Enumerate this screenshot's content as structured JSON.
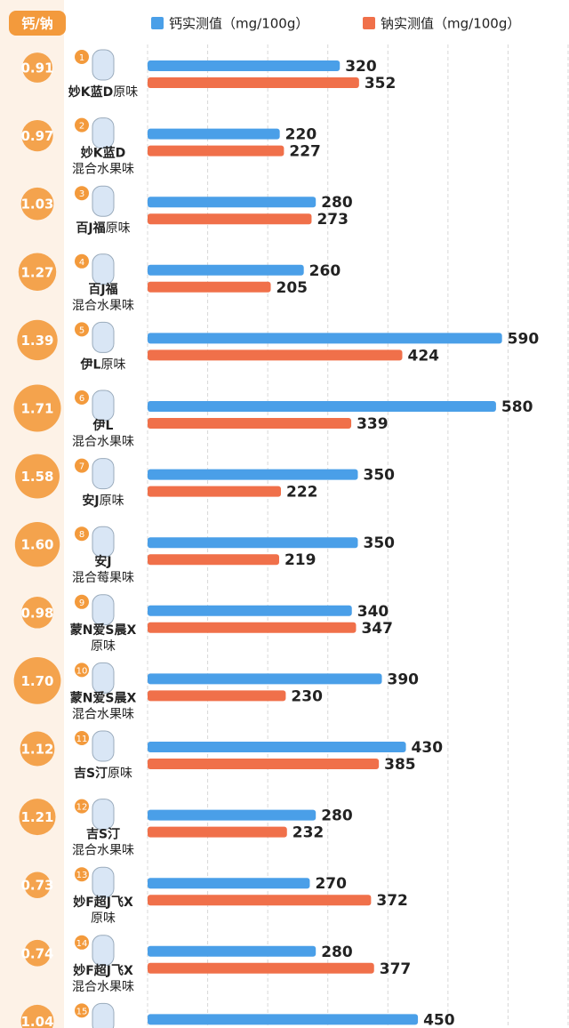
{
  "chart_data": {
    "type": "bar",
    "ratio_header": "钙/钠",
    "ranks": [
      1,
      2,
      3,
      4,
      5,
      6,
      7,
      8,
      9,
      10,
      11,
      12,
      13,
      14,
      15
    ],
    "categories": [
      "妙K蓝D",
      "妙K蓝D",
      "百J福",
      "百J福",
      "伊L",
      "伊L",
      "安J",
      "安J",
      "蒙N爱S晨X",
      "蒙N爱S晨X",
      "吉S汀",
      "吉S汀",
      "妙F超J飞X",
      "妙F超J飞X",
      null
    ],
    "flavors": [
      "原味",
      "混合水果味",
      "原味",
      "混合水果味",
      "原味",
      "混合水果味",
      "原味",
      "混合莓果味",
      "原味",
      "混合水果味",
      "原味",
      "混合水果味",
      "原味",
      "混合水果味",
      null
    ],
    "ratios": [
      0.91,
      0.97,
      1.03,
      1.27,
      1.39,
      1.71,
      1.58,
      1.6,
      0.98,
      1.7,
      1.12,
      1.21,
      0.73,
      0.74,
      1.04
    ],
    "ratio_labels": [
      "0.91",
      "0.97",
      "1.03",
      "1.27",
      "1.39",
      "1.71",
      "1.58",
      "1.60",
      "0.98",
      "1.70",
      "1.12",
      "1.21",
      "0.73",
      "0.74",
      "1.04"
    ],
    "series": [
      {
        "name": "钙实测值（mg/100g）",
        "color": "#4a9fe8",
        "values": [
          320,
          220,
          280,
          260,
          590,
          580,
          350,
          350,
          340,
          390,
          430,
          280,
          270,
          280,
          450
        ]
      },
      {
        "name": "钠实测值（mg/100g）",
        "color": "#f0704a",
        "values": [
          352,
          227,
          273,
          205,
          424,
          339,
          222,
          219,
          347,
          230,
          385,
          232,
          372,
          377,
          null
        ]
      }
    ],
    "xlim": [
      0,
      700
    ],
    "xticks": [
      0,
      100,
      200,
      300,
      400,
      500,
      600,
      700
    ],
    "grid": true
  }
}
